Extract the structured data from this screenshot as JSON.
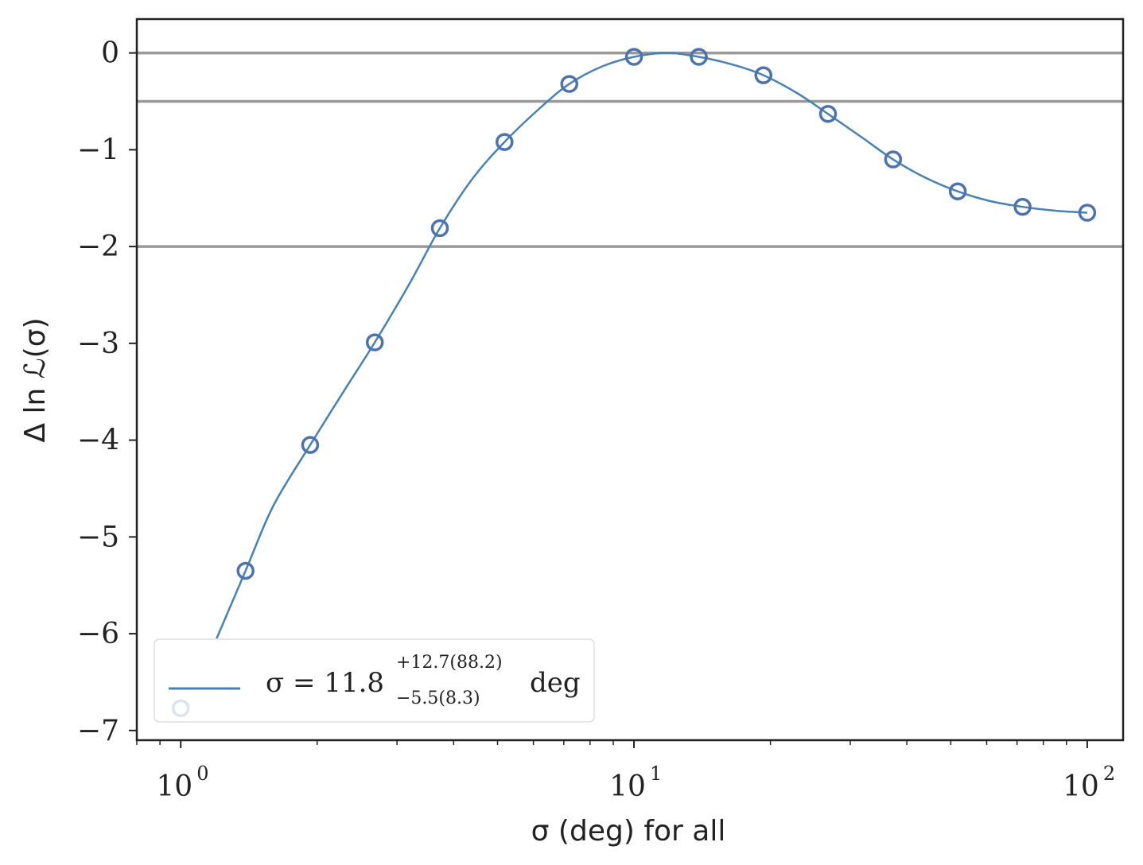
{
  "chart_data": {
    "type": "line",
    "xscale": "log",
    "xlim": [
      0.8,
      120
    ],
    "ylim": [
      -7.1,
      0.35
    ],
    "xlabel": "σ (deg) for all",
    "ylabel": "Δ ln ℒ(σ)",
    "x_ticks": [
      {
        "value": 1,
        "base": "10",
        "exp": "0"
      },
      {
        "value": 10,
        "base": "10",
        "exp": "1"
      },
      {
        "value": 100,
        "base": "10",
        "exp": "2"
      }
    ],
    "y_ticks": [
      {
        "value": 0,
        "label": "0"
      },
      {
        "value": -1,
        "label": "−1"
      },
      {
        "value": -2,
        "label": "−2"
      },
      {
        "value": -3,
        "label": "−3"
      },
      {
        "value": -4,
        "label": "−4"
      },
      {
        "value": -5,
        "label": "−5"
      },
      {
        "value": -6,
        "label": "−6"
      },
      {
        "value": -7,
        "label": "−7"
      }
    ],
    "hlines": [
      0,
      -0.5,
      -2
    ],
    "series": [
      {
        "kind": "points",
        "marker": "open-circle",
        "x": [
          1.0,
          1.39,
          1.93,
          2.68,
          3.73,
          5.18,
          7.2,
          10.0,
          13.9,
          19.3,
          26.8,
          37.3,
          51.8,
          72.0,
          100.0
        ],
        "y": [
          -6.77,
          -5.35,
          -4.05,
          -2.99,
          -1.81,
          -0.92,
          -0.32,
          -0.04,
          -0.04,
          -0.23,
          -0.63,
          -1.1,
          -1.43,
          -1.59,
          -1.65
        ]
      },
      {
        "kind": "curve",
        "x": [
          1.2,
          1.39,
          1.6,
          1.93,
          2.3,
          2.68,
          3.2,
          3.73,
          4.4,
          5.18,
          6.2,
          7.2,
          8.5,
          10.0,
          11.8,
          13.9,
          16.5,
          19.3,
          23.0,
          26.8,
          32.0,
          37.3,
          44.0,
          51.8,
          61.0,
          72.0,
          85.0,
          100.0
        ],
        "y": [
          -6.05,
          -5.35,
          -4.68,
          -4.05,
          -3.48,
          -2.99,
          -2.38,
          -1.81,
          -1.3,
          -0.92,
          -0.57,
          -0.32,
          -0.14,
          -0.04,
          0.0,
          -0.04,
          -0.12,
          -0.23,
          -0.42,
          -0.63,
          -0.88,
          -1.1,
          -1.29,
          -1.43,
          -1.53,
          -1.59,
          -1.63,
          -1.65
        ]
      }
    ],
    "legend": {
      "position": "lower-left",
      "label_main": "σ = 11.8",
      "label_sup": "+12.7(88.2)",
      "label_sub": "−5.5(8.3)",
      "label_unit": "deg"
    },
    "colors": {
      "line": "#4682b4",
      "markers": "#4c72b0",
      "hlines": "#999999",
      "axes": "#222222"
    }
  }
}
